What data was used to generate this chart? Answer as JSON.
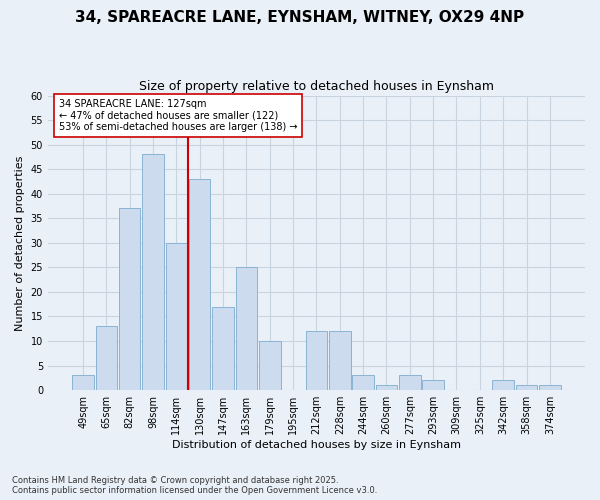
{
  "title_line1": "34, SPAREACRE LANE, EYNSHAM, WITNEY, OX29 4NP",
  "title_line2": "Size of property relative to detached houses in Eynsham",
  "xlabel": "Distribution of detached houses by size in Eynsham",
  "ylabel": "Number of detached properties",
  "categories": [
    "49sqm",
    "65sqm",
    "82sqm",
    "98sqm",
    "114sqm",
    "130sqm",
    "147sqm",
    "163sqm",
    "179sqm",
    "195sqm",
    "212sqm",
    "228sqm",
    "244sqm",
    "260sqm",
    "277sqm",
    "293sqm",
    "309sqm",
    "325sqm",
    "342sqm",
    "358sqm",
    "374sqm"
  ],
  "values": [
    3,
    13,
    37,
    48,
    30,
    43,
    17,
    25,
    10,
    0,
    12,
    12,
    3,
    1,
    3,
    2,
    0,
    0,
    2,
    1,
    1
  ],
  "bar_color": "#ccdcee",
  "bar_edge_color": "#8ab4d4",
  "grid_color": "#c8d4e0",
  "background_color": "#eaf0f8",
  "plot_bg_color": "#eaf0f8",
  "vline_x_index": 5,
  "vline_color": "#cc0000",
  "annotation_text_line1": "34 SPAREACRE LANE: 127sqm",
  "annotation_text_line2": "← 47% of detached houses are smaller (122)",
  "annotation_text_line3": "53% of semi-detached houses are larger (138) →",
  "annotation_box_color": "#ffffff",
  "annotation_box_edge": "#cc0000",
  "footnote": "Contains HM Land Registry data © Crown copyright and database right 2025.\nContains public sector information licensed under the Open Government Licence v3.0.",
  "ylim": [
    0,
    60
  ],
  "yticks": [
    0,
    5,
    10,
    15,
    20,
    25,
    30,
    35,
    40,
    45,
    50,
    55,
    60
  ],
  "title_fontsize": 11,
  "subtitle_fontsize": 9,
  "axis_label_fontsize": 8,
  "tick_fontsize": 7,
  "annotation_fontsize": 7,
  "footnote_fontsize": 6
}
